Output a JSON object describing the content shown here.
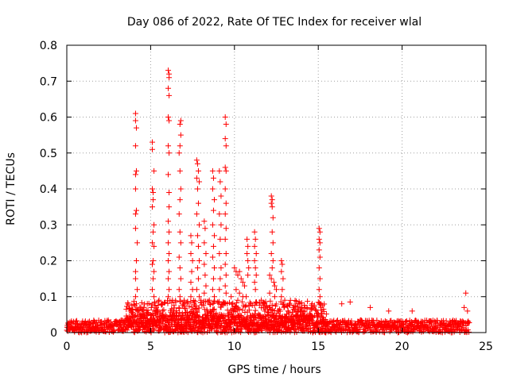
{
  "chart_data": {
    "type": "scatter",
    "title": "Day 086 of 2022, Rate Of TEC Index for receiver wlal",
    "xlabel": "GPS time / hours",
    "ylabel": "ROTI / TECUs",
    "xlim": [
      0,
      25
    ],
    "ylim": [
      0,
      0.8
    ],
    "xticks": [
      0,
      5,
      10,
      15,
      20,
      25
    ],
    "xtick_labels": [
      "0",
      "5",
      "10",
      "15",
      "20",
      "25"
    ],
    "yticks": [
      0,
      0.1,
      0.2,
      0.3,
      0.4,
      0.5,
      0.6,
      0.7,
      0.8
    ],
    "ytick_labels": [
      "0",
      "0.1",
      "0.2",
      "0.3",
      "0.4",
      "0.5",
      "0.6",
      "0.7",
      "0.8"
    ],
    "grid": true,
    "marker": "plus",
    "series": [
      {
        "name": "ROTI",
        "color": "#ff0000",
        "points": [
          [
            4.1,
            0.61
          ],
          [
            4.1,
            0.59
          ],
          [
            4.15,
            0.57
          ],
          [
            4.1,
            0.52
          ],
          [
            4.15,
            0.45
          ],
          [
            4.1,
            0.44
          ],
          [
            4.1,
            0.4
          ],
          [
            4.15,
            0.34
          ],
          [
            4.1,
            0.33
          ],
          [
            4.1,
            0.29
          ],
          [
            4.2,
            0.25
          ],
          [
            4.15,
            0.2
          ],
          [
            4.1,
            0.17
          ],
          [
            4.1,
            0.15
          ],
          [
            4.2,
            0.12
          ],
          [
            4.1,
            0.1
          ],
          [
            4.15,
            0.08
          ],
          [
            5.1,
            0.53
          ],
          [
            5.1,
            0.51
          ],
          [
            5.2,
            0.45
          ],
          [
            5.1,
            0.4
          ],
          [
            5.15,
            0.39
          ],
          [
            5.15,
            0.37
          ],
          [
            5.1,
            0.35
          ],
          [
            5.2,
            0.3
          ],
          [
            5.15,
            0.28
          ],
          [
            5.1,
            0.25
          ],
          [
            5.2,
            0.24
          ],
          [
            5.15,
            0.2
          ],
          [
            5.1,
            0.19
          ],
          [
            5.2,
            0.17
          ],
          [
            5.15,
            0.15
          ],
          [
            5.1,
            0.12
          ],
          [
            5.2,
            0.1
          ],
          [
            6.05,
            0.73
          ],
          [
            6.1,
            0.72
          ],
          [
            6.1,
            0.71
          ],
          [
            6.05,
            0.68
          ],
          [
            6.1,
            0.66
          ],
          [
            6.05,
            0.6
          ],
          [
            6.1,
            0.59
          ],
          [
            6.05,
            0.52
          ],
          [
            6.1,
            0.5
          ],
          [
            6.05,
            0.44
          ],
          [
            6.1,
            0.39
          ],
          [
            6.1,
            0.35
          ],
          [
            6.05,
            0.31
          ],
          [
            6.1,
            0.28
          ],
          [
            6.05,
            0.25
          ],
          [
            6.1,
            0.22
          ],
          [
            6.05,
            0.2
          ],
          [
            6.1,
            0.17
          ],
          [
            6.05,
            0.15
          ],
          [
            6.1,
            0.12
          ],
          [
            6.05,
            0.1
          ],
          [
            6.8,
            0.59
          ],
          [
            6.75,
            0.58
          ],
          [
            6.8,
            0.55
          ],
          [
            6.75,
            0.52
          ],
          [
            6.7,
            0.5
          ],
          [
            6.75,
            0.45
          ],
          [
            6.8,
            0.4
          ],
          [
            6.75,
            0.37
          ],
          [
            6.7,
            0.33
          ],
          [
            6.75,
            0.28
          ],
          [
            6.8,
            0.25
          ],
          [
            6.7,
            0.21
          ],
          [
            6.75,
            0.18
          ],
          [
            6.8,
            0.15
          ],
          [
            6.7,
            0.12
          ],
          [
            6.75,
            0.1
          ],
          [
            7.4,
            0.27
          ],
          [
            7.45,
            0.25
          ],
          [
            7.4,
            0.22
          ],
          [
            7.5,
            0.2
          ],
          [
            7.45,
            0.17
          ],
          [
            7.4,
            0.14
          ],
          [
            7.5,
            0.12
          ],
          [
            7.4,
            0.1
          ],
          [
            7.75,
            0.48
          ],
          [
            7.8,
            0.47
          ],
          [
            7.85,
            0.45
          ],
          [
            7.75,
            0.43
          ],
          [
            7.9,
            0.42
          ],
          [
            7.8,
            0.4
          ],
          [
            7.85,
            0.36
          ],
          [
            7.75,
            0.33
          ],
          [
            7.9,
            0.3
          ],
          [
            7.8,
            0.27
          ],
          [
            7.85,
            0.24
          ],
          [
            7.9,
            0.2
          ],
          [
            7.8,
            0.18
          ],
          [
            7.85,
            0.15
          ],
          [
            7.75,
            0.12
          ],
          [
            7.9,
            0.1
          ],
          [
            8.2,
            0.31
          ],
          [
            8.25,
            0.29
          ],
          [
            8.2,
            0.25
          ],
          [
            8.3,
            0.22
          ],
          [
            8.2,
            0.19
          ],
          [
            8.25,
            0.16
          ],
          [
            8.3,
            0.13
          ],
          [
            8.2,
            0.11
          ],
          [
            8.7,
            0.45
          ],
          [
            8.75,
            0.43
          ],
          [
            8.7,
            0.4
          ],
          [
            8.8,
            0.37
          ],
          [
            8.75,
            0.34
          ],
          [
            8.7,
            0.3
          ],
          [
            8.8,
            0.27
          ],
          [
            8.75,
            0.24
          ],
          [
            8.7,
            0.21
          ],
          [
            8.8,
            0.18
          ],
          [
            8.75,
            0.15
          ],
          [
            8.7,
            0.12
          ],
          [
            8.8,
            0.1
          ],
          [
            9.1,
            0.45
          ],
          [
            9.15,
            0.42
          ],
          [
            9.2,
            0.38
          ],
          [
            9.1,
            0.33
          ],
          [
            9.2,
            0.3
          ],
          [
            9.15,
            0.26
          ],
          [
            9.1,
            0.22
          ],
          [
            9.2,
            0.18
          ],
          [
            9.15,
            0.15
          ],
          [
            9.1,
            0.12
          ],
          [
            9.45,
            0.6
          ],
          [
            9.5,
            0.58
          ],
          [
            9.45,
            0.54
          ],
          [
            9.5,
            0.52
          ],
          [
            9.45,
            0.46
          ],
          [
            9.5,
            0.45
          ],
          [
            9.45,
            0.4
          ],
          [
            9.5,
            0.36
          ],
          [
            9.45,
            0.33
          ],
          [
            9.5,
            0.29
          ],
          [
            9.45,
            0.26
          ],
          [
            9.5,
            0.22
          ],
          [
            9.45,
            0.19
          ],
          [
            9.5,
            0.16
          ],
          [
            9.45,
            0.13
          ],
          [
            9.5,
            0.11
          ],
          [
            10.0,
            0.18
          ],
          [
            10.1,
            0.17
          ],
          [
            10.2,
            0.16
          ],
          [
            10.3,
            0.17
          ],
          [
            10.4,
            0.15
          ],
          [
            10.5,
            0.14
          ],
          [
            10.6,
            0.13
          ],
          [
            10.1,
            0.12
          ],
          [
            10.3,
            0.11
          ],
          [
            10.5,
            0.1
          ],
          [
            10.2,
            0.09
          ],
          [
            10.7,
            0.1
          ],
          [
            10.75,
            0.26
          ],
          [
            10.8,
            0.24
          ],
          [
            10.75,
            0.22
          ],
          [
            10.8,
            0.2
          ],
          [
            10.85,
            0.18
          ],
          [
            10.8,
            0.16
          ],
          [
            11.2,
            0.28
          ],
          [
            11.25,
            0.26
          ],
          [
            11.2,
            0.24
          ],
          [
            11.3,
            0.22
          ],
          [
            11.2,
            0.2
          ],
          [
            11.25,
            0.18
          ],
          [
            11.3,
            0.16
          ],
          [
            11.2,
            0.14
          ],
          [
            11.25,
            0.12
          ],
          [
            12.2,
            0.38
          ],
          [
            12.25,
            0.37
          ],
          [
            12.2,
            0.36
          ],
          [
            12.25,
            0.35
          ],
          [
            12.3,
            0.32
          ],
          [
            12.25,
            0.28
          ],
          [
            12.3,
            0.25
          ],
          [
            12.2,
            0.22
          ],
          [
            12.3,
            0.2
          ],
          [
            12.25,
            0.18
          ],
          [
            12.1,
            0.16
          ],
          [
            12.2,
            0.15
          ],
          [
            12.35,
            0.14
          ],
          [
            12.4,
            0.13
          ],
          [
            12.5,
            0.12
          ],
          [
            12.1,
            0.11
          ],
          [
            12.4,
            0.1
          ],
          [
            12.8,
            0.2
          ],
          [
            12.85,
            0.19
          ],
          [
            12.8,
            0.17
          ],
          [
            12.9,
            0.15
          ],
          [
            12.85,
            0.12
          ],
          [
            12.8,
            0.1
          ],
          [
            13.2,
            0.06
          ],
          [
            13.5,
            0.07
          ],
          [
            13.8,
            0.08
          ],
          [
            14.1,
            0.06
          ],
          [
            14.5,
            0.05
          ],
          [
            15.05,
            0.29
          ],
          [
            15.1,
            0.28
          ],
          [
            15.05,
            0.26
          ],
          [
            15.1,
            0.25
          ],
          [
            15.05,
            0.23
          ],
          [
            15.1,
            0.21
          ],
          [
            15.05,
            0.18
          ],
          [
            15.1,
            0.15
          ],
          [
            15.05,
            0.12
          ],
          [
            15.1,
            0.1
          ],
          [
            15.15,
            0.08
          ],
          [
            16.4,
            0.08
          ],
          [
            16.9,
            0.085
          ],
          [
            18.1,
            0.07
          ],
          [
            19.2,
            0.06
          ],
          [
            20.6,
            0.06
          ],
          [
            23.8,
            0.11
          ],
          [
            23.7,
            0.07
          ],
          [
            23.9,
            0.06
          ],
          [
            3.8,
            0.06
          ],
          [
            3.9,
            0.065
          ],
          [
            4.6,
            0.07
          ],
          [
            4.8,
            0.08
          ],
          [
            5.5,
            0.09
          ],
          [
            5.7,
            0.08
          ],
          [
            6.3,
            0.09
          ],
          [
            6.5,
            0.085
          ],
          [
            7.0,
            0.09
          ],
          [
            7.2,
            0.085
          ],
          [
            8.0,
            0.09
          ],
          [
            8.5,
            0.09
          ],
          [
            9.0,
            0.085
          ],
          [
            9.8,
            0.1
          ],
          [
            11.6,
            0.09
          ],
          [
            11.8,
            0.08
          ],
          [
            13.0,
            0.09
          ],
          [
            14.0,
            0.07
          ]
        ]
      }
    ],
    "baseline_band": {
      "x_range": [
        0,
        24
      ],
      "typical_range": [
        0.0,
        0.035
      ],
      "active_range": [
        3.5,
        15.5
      ],
      "active_upper": 0.09
    }
  }
}
